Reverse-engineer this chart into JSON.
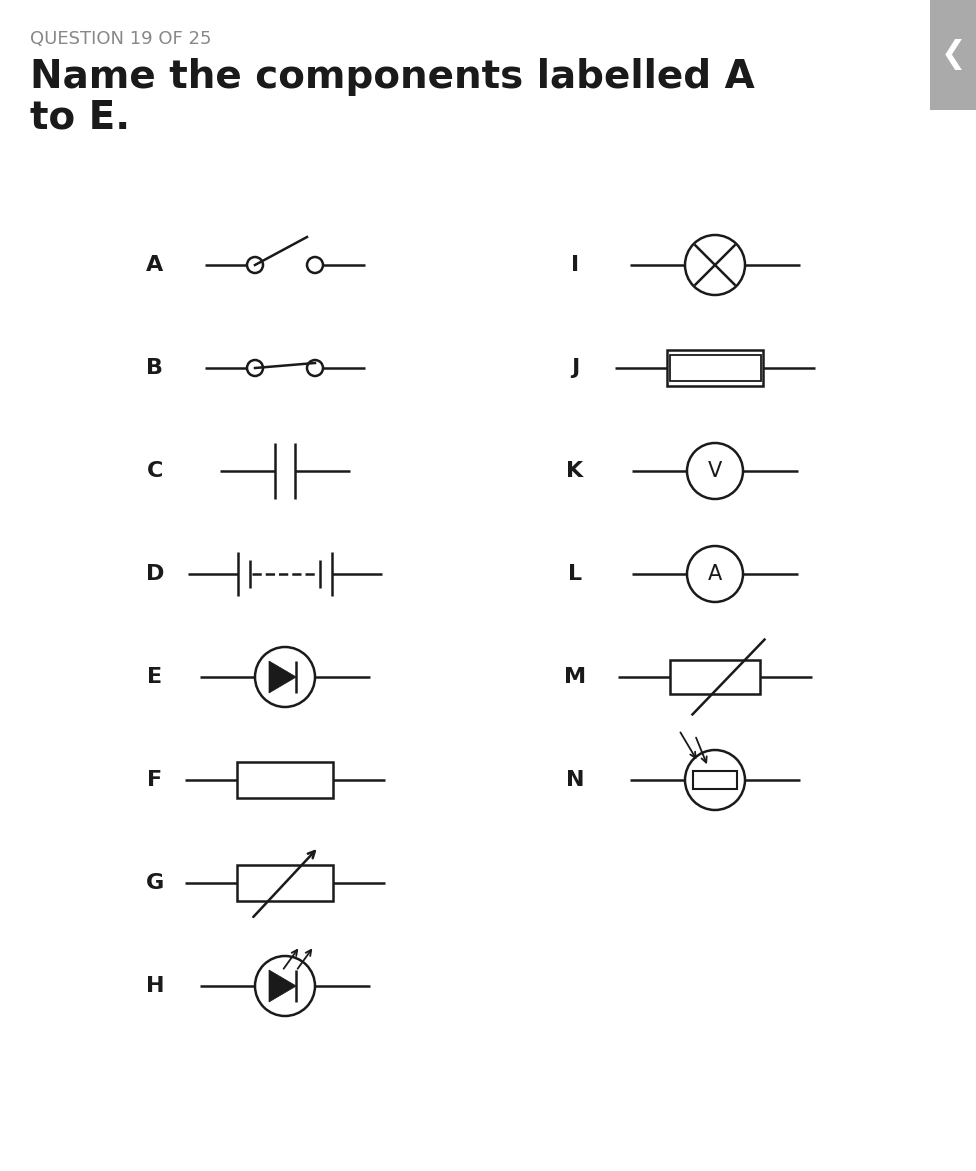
{
  "bg_color": "#ffffff",
  "question_label": "QUESTION 19 OF 25",
  "title_line1": "Name the components labelled A",
  "title_line2": "to E.",
  "title_fontsize": 28,
  "question_fontsize": 13,
  "label_fontsize": 16,
  "symbol_color": "#1a1a1a",
  "fig_width": 9.76,
  "fig_height": 11.71,
  "dpi": 100
}
